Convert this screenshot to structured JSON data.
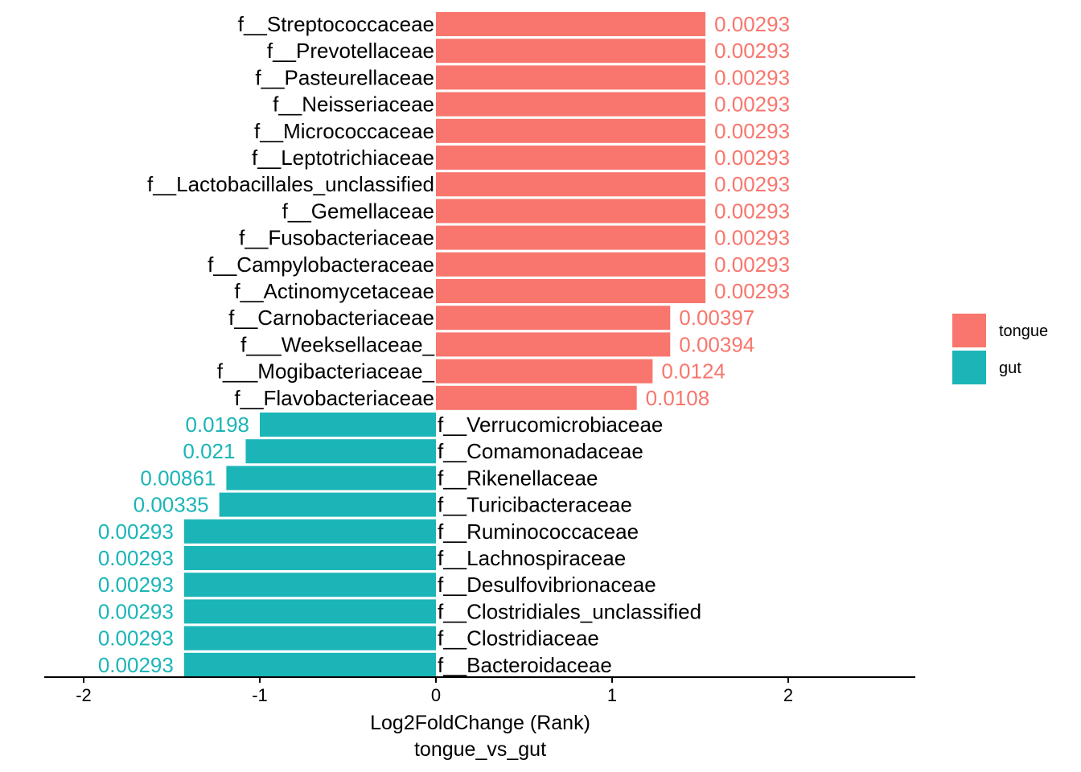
{
  "chart_data": {
    "type": "bar",
    "orientation": "horizontal",
    "xlabel": "Log2FoldChange (Rank)",
    "subtitle": "tongue_vs_gut",
    "xlim": [
      -2.25,
      2.7
    ],
    "x_ticks": [
      "-2",
      "-1",
      "0",
      "1",
      "2"
    ],
    "x_tick_values": [
      -2,
      -1,
      0,
      1,
      2
    ],
    "grid": false,
    "legend_position": "right",
    "colors": {
      "tongue": "#F8766D",
      "gut": "#1BB5B8"
    },
    "legend": [
      {
        "name": "tongue",
        "color": "#F8766D"
      },
      {
        "name": "gut",
        "color": "#1BB5B8"
      }
    ],
    "series": [
      {
        "name": "tongue",
        "bars": [
          {
            "category": "f__Streptococcaceae",
            "value": 1.53,
            "label": "0.00293"
          },
          {
            "category": "f__Prevotellaceae",
            "value": 1.53,
            "label": "0.00293"
          },
          {
            "category": "f__Pasteurellaceae",
            "value": 1.53,
            "label": "0.00293"
          },
          {
            "category": "f__Neisseriaceae",
            "value": 1.53,
            "label": "0.00293"
          },
          {
            "category": "f__Micrococcaceae",
            "value": 1.53,
            "label": "0.00293"
          },
          {
            "category": "f__Leptotrichiaceae",
            "value": 1.53,
            "label": "0.00293"
          },
          {
            "category": "f__Lactobacillales_unclassified",
            "value": 1.53,
            "label": "0.00293"
          },
          {
            "category": "f__Gemellaceae",
            "value": 1.53,
            "label": "0.00293"
          },
          {
            "category": "f__Fusobacteriaceae",
            "value": 1.53,
            "label": "0.00293"
          },
          {
            "category": "f__Campylobacteraceae",
            "value": 1.53,
            "label": "0.00293"
          },
          {
            "category": "f__Actinomycetaceae",
            "value": 1.53,
            "label": "0.00293"
          },
          {
            "category": "f__Carnobacteriaceae",
            "value": 1.33,
            "label": "0.00397"
          },
          {
            "category": "f___Weeksellaceae_",
            "value": 1.33,
            "label": "0.00394"
          },
          {
            "category": "f___Mogibacteriaceae_",
            "value": 1.23,
            "label": "0.0124"
          },
          {
            "category": "f__Flavobacteriaceae",
            "value": 1.14,
            "label": "0.0108"
          }
        ]
      },
      {
        "name": "gut",
        "bars": [
          {
            "category": "f__Verrucomicrobiaceae",
            "value": -1.0,
            "label": "0.0198"
          },
          {
            "category": "f__Comamonadaceae",
            "value": -1.08,
            "label": "0.021"
          },
          {
            "category": "f__Rikenellaceae",
            "value": -1.19,
            "label": "0.00861"
          },
          {
            "category": "f__Turicibacteraceae",
            "value": -1.23,
            "label": "0.00335"
          },
          {
            "category": "f__Ruminococcaceae",
            "value": -1.43,
            "label": "0.00293"
          },
          {
            "category": "f__Lachnospiraceae",
            "value": -1.43,
            "label": "0.00293"
          },
          {
            "category": "f__Desulfovibrionaceae",
            "value": -1.43,
            "label": "0.00293"
          },
          {
            "category": "f__Clostridiales_unclassified",
            "value": -1.43,
            "label": "0.00293"
          },
          {
            "category": "f__Clostridiaceae",
            "value": -1.43,
            "label": "0.00293"
          },
          {
            "category": "f__Bacteroidaceae",
            "value": -1.43,
            "label": "0.00293"
          }
        ]
      }
    ]
  }
}
